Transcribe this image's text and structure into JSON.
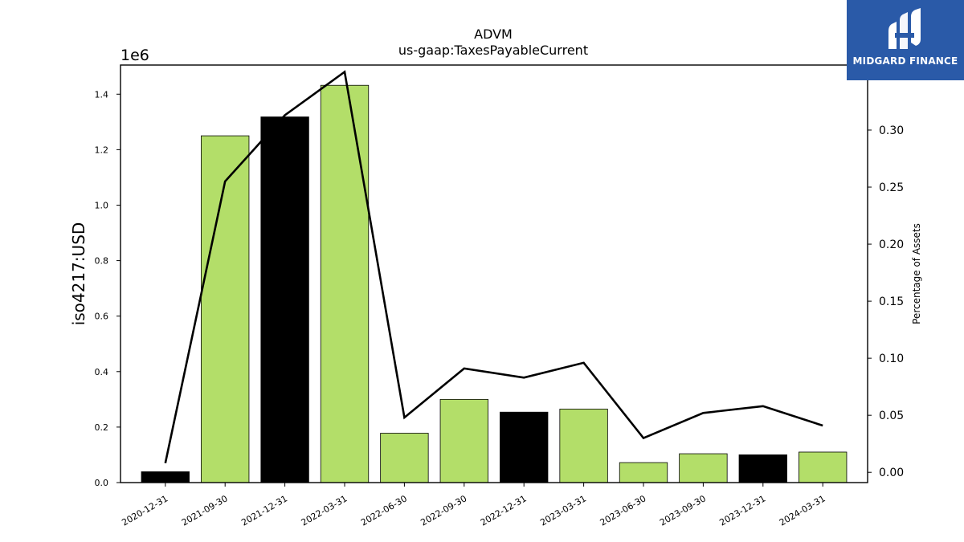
{
  "chart_data": {
    "type": "bar",
    "title": "ADVM",
    "subtitle": "us-gaap:TaxesPayableCurrent",
    "ylabel": "iso4217:USD",
    "y_offset_text": "1e6",
    "y2label": "Percentage of Assets",
    "categories": [
      "2020-12-31",
      "2021-09-30",
      "2021-12-31",
      "2022-03-31",
      "2022-06-30",
      "2022-09-30",
      "2022-12-31",
      "2023-03-31",
      "2023-06-30",
      "2023-09-30",
      "2023-12-31",
      "2024-03-31"
    ],
    "series": [
      {
        "type": "bar",
        "values": [
          0.039,
          1.25,
          1.318,
          1.432,
          0.178,
          0.3,
          0.254,
          0.265,
          0.072,
          0.104,
          0.1,
          0.11
        ],
        "colors": [
          "#000000",
          "#b3de69",
          "#000000",
          "#b3de69",
          "#b3de69",
          "#b3de69",
          "#000000",
          "#b3de69",
          "#b3de69",
          "#b3de69",
          "#000000",
          "#b3de69"
        ]
      },
      {
        "type": "line",
        "axis": "right",
        "values": [
          0.008,
          0.255,
          0.313,
          0.351,
          0.048,
          0.091,
          0.083,
          0.096,
          0.03,
          0.052,
          0.058,
          0.041
        ],
        "color": "#000000"
      }
    ],
    "ylim": [
      0,
      1.505
    ],
    "yticks": [
      "0.0",
      "0.2",
      "0.4",
      "0.6",
      "0.8",
      "1.0",
      "1.2",
      "1.4"
    ],
    "y2lim": [
      -0.009,
      0.357
    ],
    "y2ticks": [
      "0.00",
      "0.05",
      "0.10",
      "0.15",
      "0.20",
      "0.25",
      "0.30"
    ],
    "grid": false
  },
  "logo": {
    "text": "MIDGARD FINANCE",
    "icon": "midgard-logo-icon",
    "color": "#2a5aa8"
  }
}
